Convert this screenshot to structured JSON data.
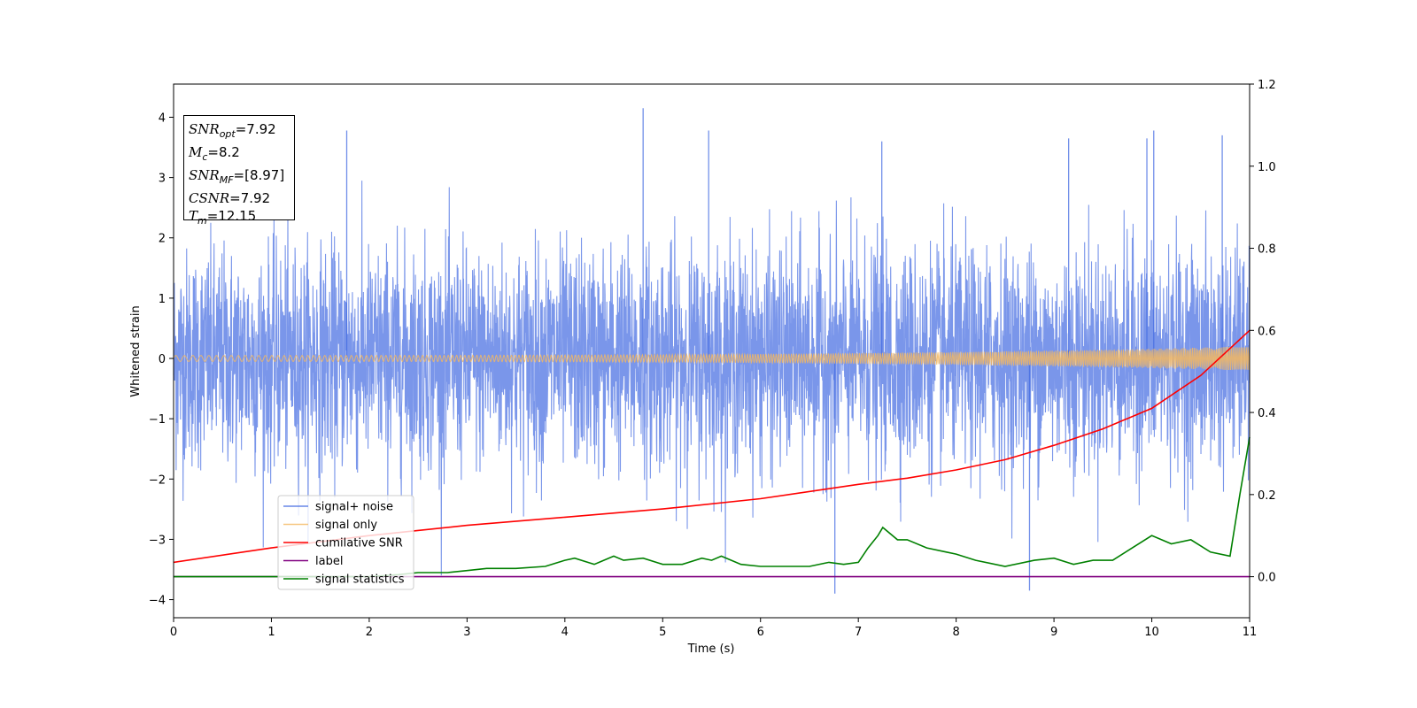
{
  "chart_data": {
    "type": "line",
    "title": "",
    "xlabel": "Time (s)",
    "ylabel": "Whitened strain",
    "xlim": [
      0,
      11
    ],
    "ylim": [
      -4.3,
      4.55
    ],
    "y2lim": [
      -0.1,
      1.2
    ],
    "x_ticks": [
      0,
      1,
      2,
      3,
      4,
      5,
      6,
      7,
      8,
      9,
      10,
      11
    ],
    "y_ticks": [
      -4,
      -3,
      -2,
      -1,
      0,
      1,
      2,
      3,
      4
    ],
    "y2_ticks": [
      0.0,
      0.2,
      0.4,
      0.6,
      0.8,
      1.0,
      1.2
    ],
    "y2_tick_labels": [
      "0.0",
      "0.2",
      "0.4",
      "0.6",
      "0.8",
      "1.0",
      "1.2"
    ],
    "grid": false,
    "legend_position": "lower-left",
    "series": [
      {
        "name": "signal+ noise",
        "color": "#4169e1",
        "axis": "left",
        "description_range": [
          -3.9,
          4.15
        ],
        "noise_sigma": 0.9,
        "spikes": [
          [
            4.8,
            4.15
          ],
          [
            1.77,
            3.78
          ],
          [
            5.47,
            3.78
          ],
          [
            10.02,
            3.78
          ],
          [
            8.75,
            -3.85
          ],
          [
            6.76,
            -3.9
          ],
          [
            9.95,
            3.65
          ],
          [
            10.72,
            3.7
          ],
          [
            7.24,
            3.6
          ],
          [
            9.15,
            3.65
          ]
        ]
      },
      {
        "name": "signal only",
        "color": "#f4b860",
        "axis": "left",
        "amplitude_start": 0.05,
        "amplitude_end": 0.2
      },
      {
        "name": "cumilative SNR",
        "color": "#ff0000",
        "axis": "right",
        "x": [
          0,
          1,
          2,
          3,
          4,
          5,
          6,
          7,
          7.5,
          8,
          8.5,
          9,
          9.5,
          10,
          10.5,
          11
        ],
        "y": [
          0.035,
          0.07,
          0.1,
          0.125,
          0.145,
          0.165,
          0.19,
          0.225,
          0.24,
          0.26,
          0.285,
          0.32,
          0.36,
          0.41,
          0.49,
          0.6
        ]
      },
      {
        "name": "label",
        "color": "#800080",
        "axis": "right",
        "x": [
          0,
          11
        ],
        "y": [
          0.0,
          0.0
        ]
      },
      {
        "name": "signal statistics",
        "color": "#008000",
        "axis": "right",
        "x": [
          0,
          0.5,
          1,
          1.5,
          2,
          2.3,
          2.5,
          2.8,
          3,
          3.2,
          3.5,
          3.8,
          4,
          4.1,
          4.3,
          4.5,
          4.6,
          4.8,
          5,
          5.2,
          5.4,
          5.5,
          5.6,
          5.8,
          6,
          6.2,
          6.5,
          6.7,
          6.85,
          7,
          7.1,
          7.2,
          7.25,
          7.4,
          7.5,
          7.7,
          7.9,
          8,
          8.2,
          8.5,
          8.8,
          9,
          9.2,
          9.4,
          9.6,
          9.8,
          10,
          10.2,
          10.4,
          10.6,
          10.8,
          10.9,
          11
        ],
        "y": [
          0.0,
          0.0,
          0.0,
          0.0,
          0.0,
          0.005,
          0.01,
          0.01,
          0.015,
          0.02,
          0.02,
          0.025,
          0.04,
          0.045,
          0.03,
          0.05,
          0.04,
          0.045,
          0.03,
          0.03,
          0.045,
          0.04,
          0.05,
          0.03,
          0.025,
          0.025,
          0.025,
          0.035,
          0.03,
          0.035,
          0.07,
          0.1,
          0.12,
          0.09,
          0.09,
          0.07,
          0.06,
          0.055,
          0.04,
          0.025,
          0.04,
          0.045,
          0.03,
          0.04,
          0.04,
          0.07,
          0.1,
          0.08,
          0.09,
          0.06,
          0.05,
          0.2,
          0.34
        ]
      }
    ],
    "annotation": {
      "lines": [
        {
          "name": "SNR",
          "sub": "opt",
          "value": "=7.92"
        },
        {
          "name": "M",
          "sub": "c",
          "value": "=8.2"
        },
        {
          "name": "SNR",
          "sub": "MF",
          "value": "=[8.97]"
        },
        {
          "name": "CSNR",
          "sub": "",
          "value": "=7.92"
        },
        {
          "name": "T",
          "sub": "m",
          "value": "=12.15"
        }
      ]
    }
  }
}
